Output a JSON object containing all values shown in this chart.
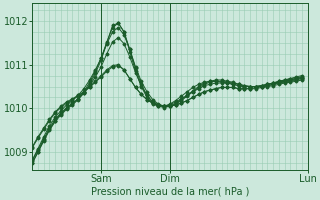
{
  "bg_color": "#cce8dc",
  "grid_color": "#99ccb3",
  "line_color": "#1a5c2a",
  "ylabel_ticks": [
    1009,
    1010,
    1011,
    1012
  ],
  "xlim": [
    0,
    48
  ],
  "ylim": [
    1008.6,
    1012.4
  ],
  "xlabel": "Pression niveau de la mer( hPa )",
  "x_tick_positions": [
    12,
    24,
    48
  ],
  "x_tick_labels": [
    "Sam",
    "Dim",
    "Lun"
  ],
  "series": [
    [
      1008.75,
      1009.0,
      1009.25,
      1009.5,
      1009.7,
      1009.85,
      1009.98,
      1010.08,
      1010.2,
      1010.35,
      1010.55,
      1010.8,
      1011.1,
      1011.5,
      1011.9,
      1011.95,
      1011.75,
      1011.3,
      1010.85,
      1010.5,
      1010.25,
      1010.1,
      1010.05,
      1010.05,
      1010.1,
      1010.18,
      1010.28,
      1010.38,
      1010.48,
      1010.55,
      1010.6,
      1010.62,
      1010.62,
      1010.6,
      1010.58,
      1010.55,
      1010.52,
      1010.5,
      1010.5,
      1010.5,
      1010.5,
      1010.52,
      1010.55,
      1010.6,
      1010.62,
      1010.65,
      1010.68,
      1010.7
    ],
    [
      1008.8,
      1009.05,
      1009.3,
      1009.55,
      1009.75,
      1009.9,
      1010.02,
      1010.12,
      1010.22,
      1010.35,
      1010.52,
      1010.72,
      1010.95,
      1011.25,
      1011.52,
      1011.62,
      1011.48,
      1011.18,
      1010.82,
      1010.52,
      1010.3,
      1010.15,
      1010.08,
      1010.05,
      1010.08,
      1010.15,
      1010.22,
      1010.3,
      1010.38,
      1010.45,
      1010.52,
      1010.55,
      1010.58,
      1010.58,
      1010.58,
      1010.55,
      1010.52,
      1010.5,
      1010.5,
      1010.5,
      1010.52,
      1010.55,
      1010.58,
      1010.6,
      1010.62,
      1010.65,
      1010.68,
      1010.7
    ],
    [
      1009.1,
      1009.32,
      1009.52,
      1009.72,
      1009.9,
      1010.02,
      1010.12,
      1010.2,
      1010.28,
      1010.38,
      1010.5,
      1010.62,
      1010.75,
      1010.88,
      1010.98,
      1011.0,
      1010.88,
      1010.68,
      1010.48,
      1010.32,
      1010.2,
      1010.12,
      1010.08,
      1010.05,
      1010.05,
      1010.08,
      1010.12,
      1010.18,
      1010.25,
      1010.32,
      1010.38,
      1010.42,
      1010.45,
      1010.48,
      1010.48,
      1010.48,
      1010.45,
      1010.45,
      1010.45,
      1010.45,
      1010.48,
      1010.5,
      1010.52,
      1010.55,
      1010.58,
      1010.6,
      1010.62,
      1010.65
    ],
    [
      1009.12,
      1009.35,
      1009.55,
      1009.75,
      1009.92,
      1010.05,
      1010.15,
      1010.22,
      1010.3,
      1010.38,
      1010.48,
      1010.6,
      1010.72,
      1010.85,
      1010.95,
      1010.98,
      1010.88,
      1010.68,
      1010.48,
      1010.32,
      1010.2,
      1010.12,
      1010.08,
      1010.05,
      1010.05,
      1010.08,
      1010.12,
      1010.18,
      1010.25,
      1010.32,
      1010.38,
      1010.42,
      1010.45,
      1010.48,
      1010.48,
      1010.48,
      1010.45,
      1010.45,
      1010.45,
      1010.48,
      1010.5,
      1010.52,
      1010.55,
      1010.58,
      1010.6,
      1010.62,
      1010.65,
      1010.68
    ],
    [
      1008.82,
      1009.08,
      1009.35,
      1009.6,
      1009.8,
      1009.95,
      1010.08,
      1010.18,
      1010.3,
      1010.45,
      1010.65,
      1010.88,
      1011.15,
      1011.48,
      1011.75,
      1011.85,
      1011.68,
      1011.35,
      1010.95,
      1010.62,
      1010.38,
      1010.2,
      1010.1,
      1010.05,
      1010.05,
      1010.1,
      1010.18,
      1010.28,
      1010.38,
      1010.48,
      1010.55,
      1010.6,
      1010.62,
      1010.62,
      1010.6,
      1010.58,
      1010.55,
      1010.52,
      1010.5,
      1010.5,
      1010.52,
      1010.55,
      1010.58,
      1010.62,
      1010.65,
      1010.68,
      1010.7,
      1010.72
    ],
    [
      1008.75,
      1009.0,
      1009.28,
      1009.52,
      1009.72,
      1009.88,
      1010.0,
      1010.1,
      1010.22,
      1010.38,
      1010.6,
      1010.85,
      1011.15,
      1011.52,
      1011.85,
      1011.95,
      1011.75,
      1011.35,
      1010.92,
      1010.55,
      1010.3,
      1010.12,
      1010.05,
      1010.02,
      1010.05,
      1010.12,
      1010.2,
      1010.3,
      1010.4,
      1010.5,
      1010.58,
      1010.62,
      1010.65,
      1010.65,
      1010.62,
      1010.6,
      1010.55,
      1010.52,
      1010.5,
      1010.5,
      1010.52,
      1010.55,
      1010.58,
      1010.62,
      1010.65,
      1010.68,
      1010.72,
      1010.75
    ]
  ]
}
